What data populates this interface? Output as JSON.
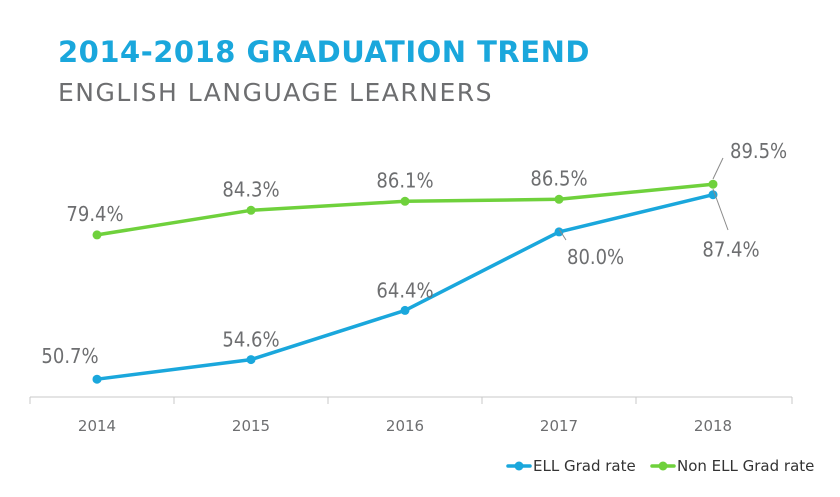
{
  "chart_data": {
    "type": "line",
    "title": "2014-2018 GRADUATION TREND",
    "subtitle": "ENGLISH LANGUAGE LEARNERS",
    "categories": [
      "2014",
      "2015",
      "2016",
      "2017",
      "2018"
    ],
    "ylim": [
      48,
      92
    ],
    "grid": false,
    "legend_position": "bottom-right",
    "series": [
      {
        "name": "ELL Grad rate",
        "color": "#1aa7dc",
        "values": [
          50.7,
          54.6,
          64.4,
          80.0,
          87.4
        ],
        "labels": [
          "50.7%",
          "54.6%",
          "64.4%",
          "80.0%",
          "87.4%"
        ]
      },
      {
        "name": "Non ELL Grad rate",
        "color": "#6fd13c",
        "values": [
          79.4,
          84.3,
          86.1,
          86.5,
          89.5
        ],
        "labels": [
          "79.4%",
          "84.3%",
          "86.1%",
          "86.5%",
          "89.5%"
        ]
      }
    ],
    "colors": {
      "title": "#1aa7dc",
      "subtitle": "#6d6e70",
      "text": "#6d6e70",
      "axis": "#c8c8c8"
    }
  }
}
